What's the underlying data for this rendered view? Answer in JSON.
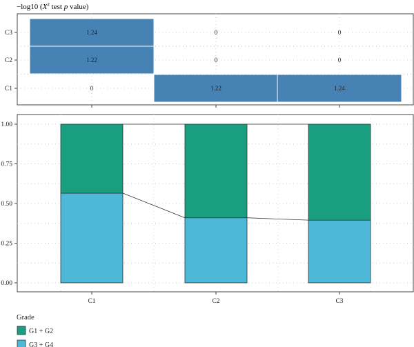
{
  "chart_data": [
    {
      "type": "heatmap",
      "title_prefix": "−log10 (",
      "title_x": "X",
      "title_sup": "2",
      "title_mid": " test ",
      "title_p": "p",
      "title_suffix": " value)",
      "rows": [
        "C3",
        "C2",
        "C1"
      ],
      "columns": [
        "",
        "",
        ""
      ],
      "cells": [
        [
          "1.24",
          "0",
          "0"
        ],
        [
          "1.22",
          "0",
          "0"
        ],
        [
          "0",
          "1.22",
          "1.24"
        ]
      ],
      "highlight_color": "#4682b4"
    },
    {
      "type": "bar",
      "stacked": true,
      "categories": [
        "C1",
        "C2",
        "C3"
      ],
      "series": [
        {
          "name": "G3 + G4",
          "values": [
            0.565,
            0.41,
            0.395
          ],
          "color": "#4db8d8"
        },
        {
          "name": "G1 + G2",
          "values": [
            0.435,
            0.59,
            0.605
          ],
          "color": "#1a9e80"
        }
      ],
      "yticks": [
        "0.00",
        "0.25",
        "0.50",
        "0.75",
        "1.00"
      ],
      "ytick_values": [
        0,
        0.25,
        0.5,
        0.75,
        1.0
      ],
      "ylim": [
        0,
        1
      ],
      "legend_title": "Grade",
      "legend_position": "bottom-left",
      "grid": "dotted"
    }
  ]
}
